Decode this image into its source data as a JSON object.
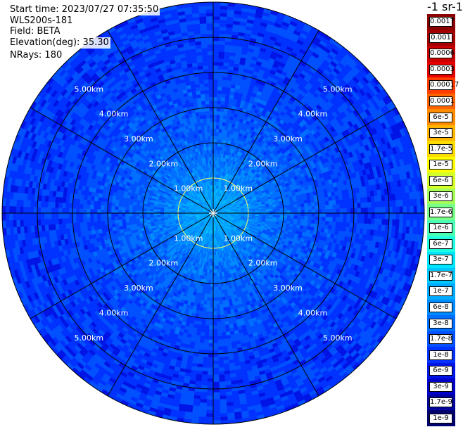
{
  "header": {
    "start_time": "Start time: 2023/07/27 07:35:50",
    "instrument": "WLS200s-181",
    "field": "Field: BETA",
    "elevation": "Elevation(deg): 35.30",
    "nrays": "NRays: 180"
  },
  "colorbar": {
    "title": "-1 sr-1",
    "labels": [
      "0.0017",
      "0.001",
      "0.0006",
      "0.0003",
      "0.00017",
      "0.0001",
      "6e-5",
      "3e-5",
      "1.7e-5",
      "1e-5",
      "6e-6",
      "3e-6",
      "1.7e-6",
      "1e-6",
      "6e-7",
      "3e-7",
      "1.7e-7",
      "1e-7",
      "6e-8",
      "3e-8",
      "1.7e-8",
      "1e-8",
      "6e-9",
      "3e-9",
      "1.7e-9",
      "1e-9"
    ],
    "colors": [
      "#8b0000",
      "#a50000",
      "#c80000",
      "#e60000",
      "#ff3c00",
      "#ff6400",
      "#ff8c00",
      "#ffb400",
      "#ffdc00",
      "#ffff00",
      "#d4ff2a",
      "#a6ff59",
      "#78ff87",
      "#4affb5",
      "#1fffe0",
      "#00e6ff",
      "#00c8ff",
      "#00aaff",
      "#008cff",
      "#006eff",
      "#0050ff",
      "#0032ff",
      "#0014e6",
      "#0000c8",
      "#00009b",
      "#00006e"
    ]
  },
  "chart_data": {
    "type": "heatmap",
    "projection": "polar (PPI scan)",
    "field": "BETA",
    "elevation_deg": 35.3,
    "n_rays": 180,
    "max_range_km": 6.0,
    "range_rings_km": [
      1,
      2,
      3,
      4,
      5,
      6
    ],
    "range_ring_labels": [
      "1.00km",
      "2.00km",
      "3.00km",
      "4.00km",
      "5.00km"
    ],
    "spokes_deg": [
      0,
      30,
      60,
      90,
      120,
      150,
      180,
      210,
      240,
      270,
      300,
      330
    ],
    "range_profile": [
      {
        "range_km": 0.0,
        "beta": 1e-07
      },
      {
        "range_km": 0.5,
        "beta": 1e-07
      },
      {
        "range_km": 1.0,
        "beta": 6e-08
      },
      {
        "range_km": 1.5,
        "beta": 4e-08
      },
      {
        "range_km": 2.0,
        "beta": 3e-08
      },
      {
        "range_km": 3.0,
        "beta": 2e-08
      },
      {
        "range_km": 4.0,
        "beta": 1.5e-08
      },
      {
        "range_km": 5.0,
        "beta": 1.3e-08
      },
      {
        "range_km": 6.0,
        "beta": 1.3e-08
      }
    ],
    "colorbar_range": [
      1e-09,
      0.0017
    ],
    "colorbar_scale": "log"
  }
}
